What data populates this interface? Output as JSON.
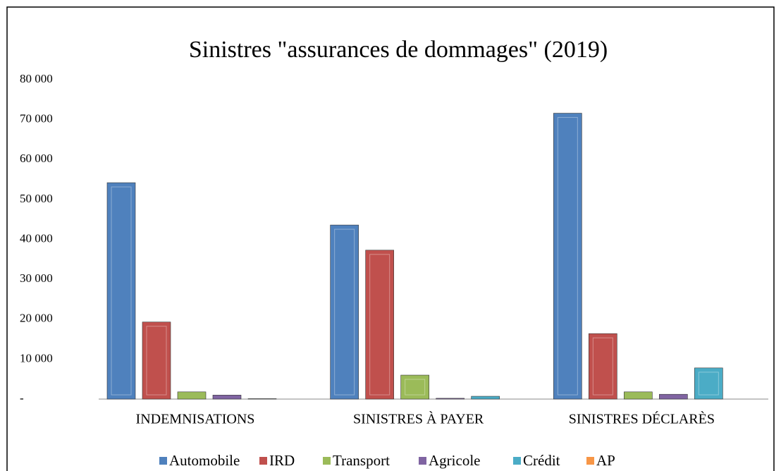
{
  "chart_data": {
    "type": "bar",
    "title": "Sinistres \"assurances de dommages\" (2019)",
    "categories": [
      "INDEMNISATIONS",
      "SINISTRES À PAYER",
      "SINISTRES DÉCLARÈS"
    ],
    "series": [
      {
        "name": "Automobile",
        "color": "#4f81bd",
        "values": [
          54200,
          43600,
          71600
        ]
      },
      {
        "name": "IRD",
        "color": "#c0504d",
        "values": [
          19300,
          37300,
          16400
        ]
      },
      {
        "name": "Transport",
        "color": "#9bbb59",
        "values": [
          1800,
          6000,
          1800
        ]
      },
      {
        "name": "Agricole",
        "color": "#8064a2",
        "values": [
          1000,
          200,
          1200
        ]
      },
      {
        "name": "Crédit",
        "color": "#4bacc6",
        "values": [
          100,
          700,
          7800
        ]
      },
      {
        "name": "AP",
        "color": "#f79646",
        "values": [
          0,
          0,
          0
        ]
      }
    ],
    "ylim": [
      0,
      80000
    ],
    "yticks": [
      {
        "value": 0,
        "label": "-"
      },
      {
        "value": 10000,
        "label": "10 000"
      },
      {
        "value": 20000,
        "label": "20 000"
      },
      {
        "value": 30000,
        "label": "30 000"
      },
      {
        "value": 40000,
        "label": "40 000"
      },
      {
        "value": 50000,
        "label": "50 000"
      },
      {
        "value": 60000,
        "label": "60 000"
      },
      {
        "value": 70000,
        "label": "70 000"
      },
      {
        "value": 80000,
        "label": "80 000"
      }
    ],
    "grid": false,
    "legend": "bottom"
  }
}
